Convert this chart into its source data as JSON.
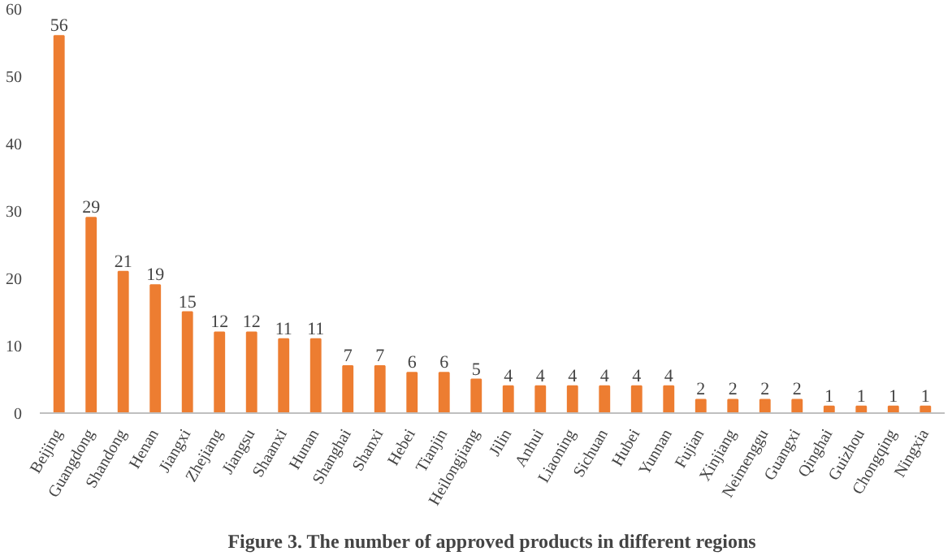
{
  "chart_data": {
    "type": "bar",
    "title": "Figure 3. The number of approved products in different regions",
    "categories": [
      "Beijing",
      "Guangdong",
      "Shandong",
      "Henan",
      "Jiangxi",
      "Zhejiang",
      "Jiangsu",
      "Shaanxi",
      "Hunan",
      "Shanghai",
      "Shanxi",
      "Hebei",
      "Tianjin",
      "Heilongjiang",
      "Jilin",
      "Anhui",
      "Liaoning",
      "Sichuan",
      "Hubei",
      "Yunnan",
      "Fujian",
      "Xinjiang",
      "Neimenggu",
      "Guangxi",
      "Qinghai",
      "Guizhou",
      "Chongqing",
      "Ningxia"
    ],
    "values": [
      56,
      29,
      21,
      19,
      15,
      12,
      12,
      11,
      11,
      7,
      7,
      6,
      6,
      5,
      4,
      4,
      4,
      4,
      4,
      4,
      2,
      2,
      2,
      2,
      1,
      1,
      1,
      1
    ],
    "color": "#ed7d31",
    "ylim": [
      0,
      60
    ],
    "yticks": [
      0,
      10,
      20,
      30,
      40,
      50,
      60
    ],
    "grid": false,
    "data_labels": true
  }
}
